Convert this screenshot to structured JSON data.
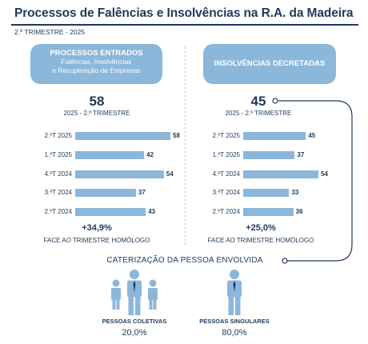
{
  "title": "Processos de Falências e Insolvências na R.A. da Madeira",
  "subtitle": "2.º TRIMESTRE - 2025",
  "left": {
    "header_title": "PROCESSOS ENTRADOS",
    "header_sub1": "Falências, Insolvências",
    "header_sub2": "e Recuperação de Empresas",
    "big_value": "58",
    "period": "2025 - 2.º TRIMESTRE",
    "delta": "+34,9%",
    "delta_label": "FACE AO TRIMESTRE HOMÓLOGO"
  },
  "right": {
    "header_title": "INSOLVÊNCIAS DECRETADAS",
    "big_value": "45",
    "period": "2025 - 2.º TRIMESTRE",
    "delta": "+25,0%",
    "delta_label": "FACE AO TRIMESTRE HOMÓLOGO"
  },
  "chart_data": [
    {
      "type": "bar",
      "orientation": "horizontal",
      "categories": [
        "2.ºT 2025",
        "1.ºT 2025",
        "4.ºT 2024",
        "3.ºT 2024",
        "2.ºT 2024"
      ],
      "values": [
        58,
        42,
        54,
        37,
        43
      ],
      "labels": [
        "58",
        "42",
        "54",
        "37",
        "43"
      ],
      "color": "#8bb7db"
    },
    {
      "type": "bar",
      "orientation": "horizontal",
      "categories": [
        "2.ºT 2025",
        "1.ºT 2025",
        "4.ºT 2024",
        "3.ºT 2024",
        "2.ºT 2024"
      ],
      "values": [
        45,
        37,
        54,
        33,
        36
      ],
      "labels": [
        "45",
        "37",
        "54",
        "33",
        "36"
      ],
      "color": "#8bb7db"
    }
  ],
  "characterization": {
    "title": "CATERIZAÇÃO DA PESSOA ENVOLVIDA",
    "collective_label": "PESSOAS COLETIVAS",
    "collective_value": "20,0%",
    "singular_label": "PESSOAS SINGULARES",
    "singular_value": "80,0%"
  },
  "colors": {
    "primary": "#1d3a5c",
    "accent": "#8bb7db"
  }
}
